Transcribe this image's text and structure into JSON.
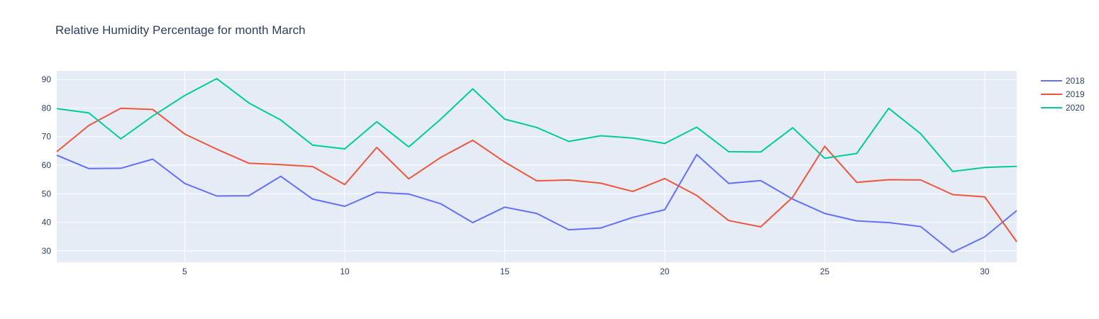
{
  "chart_data": {
    "type": "line",
    "title": "Relative Humidity Percentage for month March",
    "xlabel": "",
    "ylabel": "",
    "xlim": [
      1,
      31
    ],
    "ylim": [
      26,
      93
    ],
    "x_ticks": [
      5,
      10,
      15,
      20,
      25,
      30
    ],
    "y_ticks": [
      30,
      40,
      50,
      60,
      70,
      80,
      90
    ],
    "grid": true,
    "legend_position": "top-right",
    "x": [
      1,
      2,
      3,
      4,
      5,
      6,
      7,
      8,
      9,
      10,
      11,
      12,
      13,
      14,
      15,
      16,
      17,
      18,
      19,
      20,
      21,
      22,
      23,
      24,
      25,
      26,
      27,
      28,
      29,
      30,
      31
    ],
    "series": [
      {
        "name": "2018",
        "color": "#636efa",
        "values": [
          63.5,
          58.8,
          58.9,
          62.1,
          53.6,
          49.2,
          49.3,
          56.1,
          48.1,
          45.6,
          50.5,
          49.9,
          46.5,
          39.9,
          45.3,
          43.1,
          37.4,
          38.0,
          41.7,
          44.4,
          63.7,
          53.6,
          54.6,
          48.1,
          43.1,
          40.5,
          39.9,
          38.5,
          29.5,
          34.9,
          44.1
        ]
      },
      {
        "name": "2019",
        "color": "#ef553b",
        "values": [
          64.7,
          73.9,
          79.9,
          79.5,
          70.9,
          65.6,
          60.7,
          60.2,
          59.5,
          53.2,
          66.2,
          55.2,
          62.7,
          68.7,
          61.1,
          54.5,
          54.8,
          53.7,
          50.8,
          55.3,
          49.4,
          40.6,
          38.4,
          48.8,
          66.6,
          54.0,
          54.9,
          54.8,
          49.7,
          48.9,
          33.2
        ]
      },
      {
        "name": "2020",
        "color": "#00cc96",
        "values": [
          79.8,
          78.3,
          69.2,
          77.2,
          84.4,
          90.3,
          81.8,
          75.8,
          67.0,
          65.7,
          75.2,
          66.4,
          76.1,
          86.7,
          76.1,
          73.2,
          68.3,
          70.3,
          69.5,
          67.6,
          73.3,
          64.7,
          64.6,
          73.1,
          62.4,
          64.1,
          79.9,
          71.0,
          57.8,
          59.2,
          59.6
        ]
      }
    ]
  }
}
